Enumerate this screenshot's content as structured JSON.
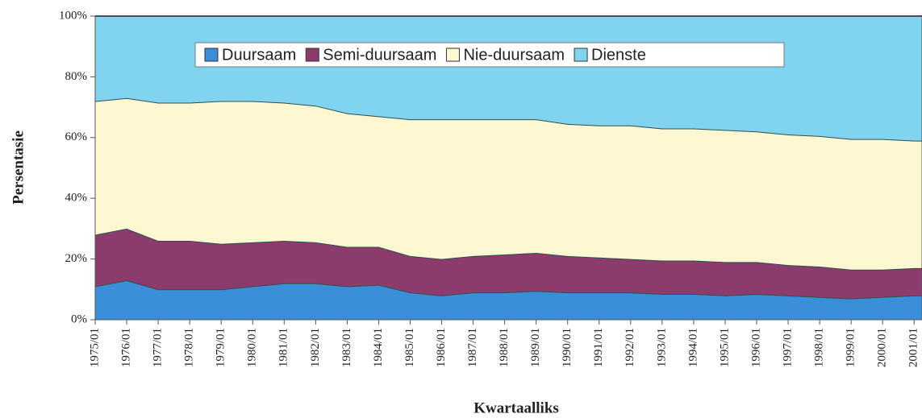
{
  "chart_data": {
    "type": "stacked_area",
    "x_label": "Kwartaalliks",
    "y_label": "Persentasie",
    "categories": [
      "1975/01",
      "1976/01",
      "1977/01",
      "1978/01",
      "1979/01",
      "1980/01",
      "1981/01",
      "1982/01",
      "1983/01",
      "1984/01",
      "1985/01",
      "1986/01",
      "1987/01",
      "1988/01",
      "1989/01",
      "1990/01",
      "1991/01",
      "1992/01",
      "1993/01",
      "1994/01",
      "1995/01",
      "1996/01",
      "1997/01",
      "1998/01",
      "1999/01",
      "2000/01",
      "2001/01"
    ],
    "series": [
      {
        "name": "Duursaam",
        "color": "#3b8fd8",
        "values": [
          11,
          13,
          10,
          10,
          10,
          11,
          12,
          12,
          11,
          11.5,
          9,
          8,
          9,
          9,
          9.5,
          9,
          9,
          9,
          8.5,
          8.5,
          8,
          8.5,
          8,
          7.5,
          7,
          7.5,
          8
        ]
      },
      {
        "name": "Semi-duursaam",
        "color": "#8c3c6c",
        "values": [
          17,
          17,
          16,
          16,
          15,
          14.5,
          14,
          13.5,
          13,
          12.5,
          12,
          12,
          12,
          12.5,
          12.5,
          12,
          11.5,
          11,
          11,
          11,
          11,
          10.5,
          10,
          10,
          9.5,
          9,
          9
        ]
      },
      {
        "name": "Nie-duursaam",
        "color": "#fdf8d2",
        "values": [
          44,
          43,
          45.5,
          45.5,
          47,
          46.5,
          45.5,
          45,
          44,
          43,
          45,
          46,
          45,
          44.5,
          44,
          43.5,
          43.5,
          44,
          43.5,
          43.5,
          43.5,
          43,
          43,
          43,
          43,
          43,
          42
        ]
      },
      {
        "name": "Dienste",
        "color": "#80d4ef",
        "values": [
          28,
          27,
          28.5,
          28.5,
          28,
          28,
          28.5,
          29.5,
          32,
          33,
          34,
          34,
          34,
          34,
          34,
          35.5,
          36,
          36,
          37,
          37,
          37.5,
          38,
          39,
          39.5,
          40.5,
          40.5,
          41
        ]
      }
    ],
    "ylim": [
      0,
      100
    ],
    "yticks": [
      {
        "value": 0,
        "label": "0%"
      },
      {
        "value": 20,
        "label": "20%"
      },
      {
        "value": 40,
        "label": "40%"
      },
      {
        "value": 60,
        "label": "60%"
      },
      {
        "value": 80,
        "label": "80%"
      },
      {
        "value": 100,
        "label": "100%"
      }
    ],
    "legend": "top"
  }
}
